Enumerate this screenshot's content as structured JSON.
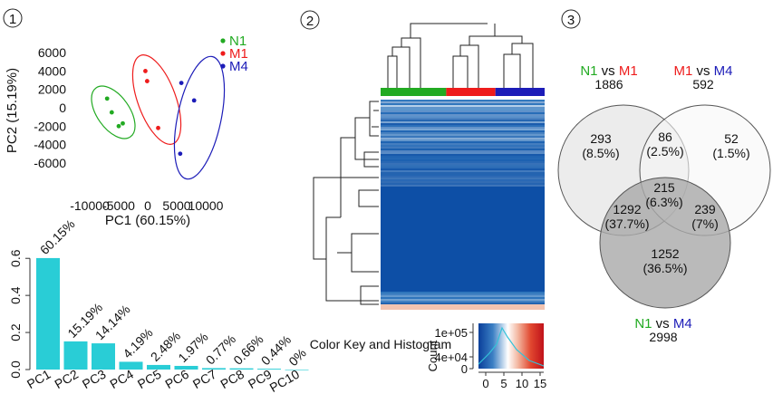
{
  "panels": {
    "p1_number": "1",
    "p2_number": "2",
    "p3_number": "3"
  },
  "colors": {
    "n1": "#22aa22",
    "m1": "#ee1c1c",
    "m4": "#1c1cb8",
    "bar": "#29cdd6",
    "heat_dark": "#0d4fa6",
    "heat_light": "#c9e0f1"
  },
  "chart_data": [
    {
      "type": "scatter",
      "xlabel": "PC1 (60.15%)",
      "ylabel": "PC2 (15.19%)",
      "xlim": [
        -12500,
        12500
      ],
      "ylim": [
        -7000,
        7000
      ],
      "x_ticks": [
        "-10000",
        "-5000",
        "0",
        "5000",
        "10000"
      ],
      "x_tick_values": [
        -10000,
        -5000,
        0,
        5000,
        10000
      ],
      "y_ticks": [
        "6000",
        "4000",
        "2000",
        "0",
        "-2000",
        "-4000",
        "-6000"
      ],
      "y_tick_values": [
        6000,
        4000,
        2000,
        0,
        -2000,
        -4000,
        -6000
      ],
      "legend_position": "top-right",
      "series": [
        {
          "name": "N1",
          "color": "#22aa22",
          "points": [
            [
              -7000,
              1000
            ],
            [
              -6200,
              -500
            ],
            [
              -5000,
              -2000
            ],
            [
              -4300,
              -1700
            ]
          ]
        },
        {
          "name": "M1",
          "color": "#ee1c1c",
          "points": [
            [
              -400,
              4000
            ],
            [
              -100,
              2900
            ],
            [
              1800,
              -2200
            ]
          ]
        },
        {
          "name": "M4",
          "color": "#1c1cb8",
          "points": [
            [
              5800,
              2700
            ],
            [
              8000,
              800
            ],
            [
              5600,
              -5000
            ]
          ]
        }
      ]
    },
    {
      "type": "bar",
      "categories": [
        "PC1",
        "PC2",
        "PC3",
        "PC4",
        "PC5",
        "PC6",
        "PC7",
        "PC8",
        "PC9",
        "PC10"
      ],
      "values": [
        0.6015,
        0.1519,
        0.1414,
        0.0419,
        0.0248,
        0.0197,
        0.0077,
        0.0066,
        0.0044,
        0.0
      ],
      "data_labels": [
        "60.15%",
        "15.19%",
        "14.14%",
        "4.19%",
        "2.48%",
        "1.97%",
        "0.77%",
        "0.66%",
        "0.44%",
        "0%"
      ],
      "ylim": [
        0,
        0.65
      ],
      "y_ticks": [
        "0.0",
        "0.2",
        "0.4",
        "0.6"
      ],
      "y_tick_values": [
        0,
        0.2,
        0.4,
        0.6
      ]
    },
    {
      "type": "heatmap",
      "column_groups": [
        {
          "color": "#22aa22",
          "count": 4
        },
        {
          "color": "#ee1c1c",
          "count": 3
        },
        {
          "color": "#1c1cb8",
          "count": 3
        }
      ],
      "color_key": {
        "label": "Color Key and Histogram",
        "ylabel": "Count",
        "y_ticks": [
          "1e+05",
          "4e+04",
          "0"
        ],
        "x_ticks": [
          "0",
          "5",
          "10",
          "15"
        ],
        "x_tick_values": [
          0,
          5,
          10,
          15
        ],
        "range": [
          0,
          15
        ]
      }
    },
    {
      "type": "venn",
      "sets": [
        {
          "id": "A",
          "left": "N1",
          "left_color": "#22aa22",
          "sep": "vs",
          "right": "M1",
          "right_color": "#ee1c1c",
          "total": "1886"
        },
        {
          "id": "B",
          "left": "M1",
          "left_color": "#ee1c1c",
          "sep": "vs",
          "right": "M4",
          "right_color": "#1c1cb8",
          "total": "592"
        },
        {
          "id": "C",
          "left": "N1",
          "left_color": "#22aa22",
          "sep": "vs",
          "right": "M4",
          "right_color": "#1c1cb8",
          "total": "2998"
        }
      ],
      "regions": [
        {
          "region": "A only",
          "count": "293",
          "pct": "(8.5%)"
        },
        {
          "region": "A and B",
          "count": "86",
          "pct": "(2.5%)"
        },
        {
          "region": "B only",
          "count": "52",
          "pct": "(1.5%)"
        },
        {
          "region": "A and B and C",
          "count": "215",
          "pct": "(6.3%)"
        },
        {
          "region": "A and C",
          "count": "1292",
          "pct": "(37.7%)"
        },
        {
          "region": "B and C",
          "count": "239",
          "pct": "(7%)"
        },
        {
          "region": "C only",
          "count": "1252",
          "pct": "(36.5%)"
        }
      ]
    }
  ]
}
